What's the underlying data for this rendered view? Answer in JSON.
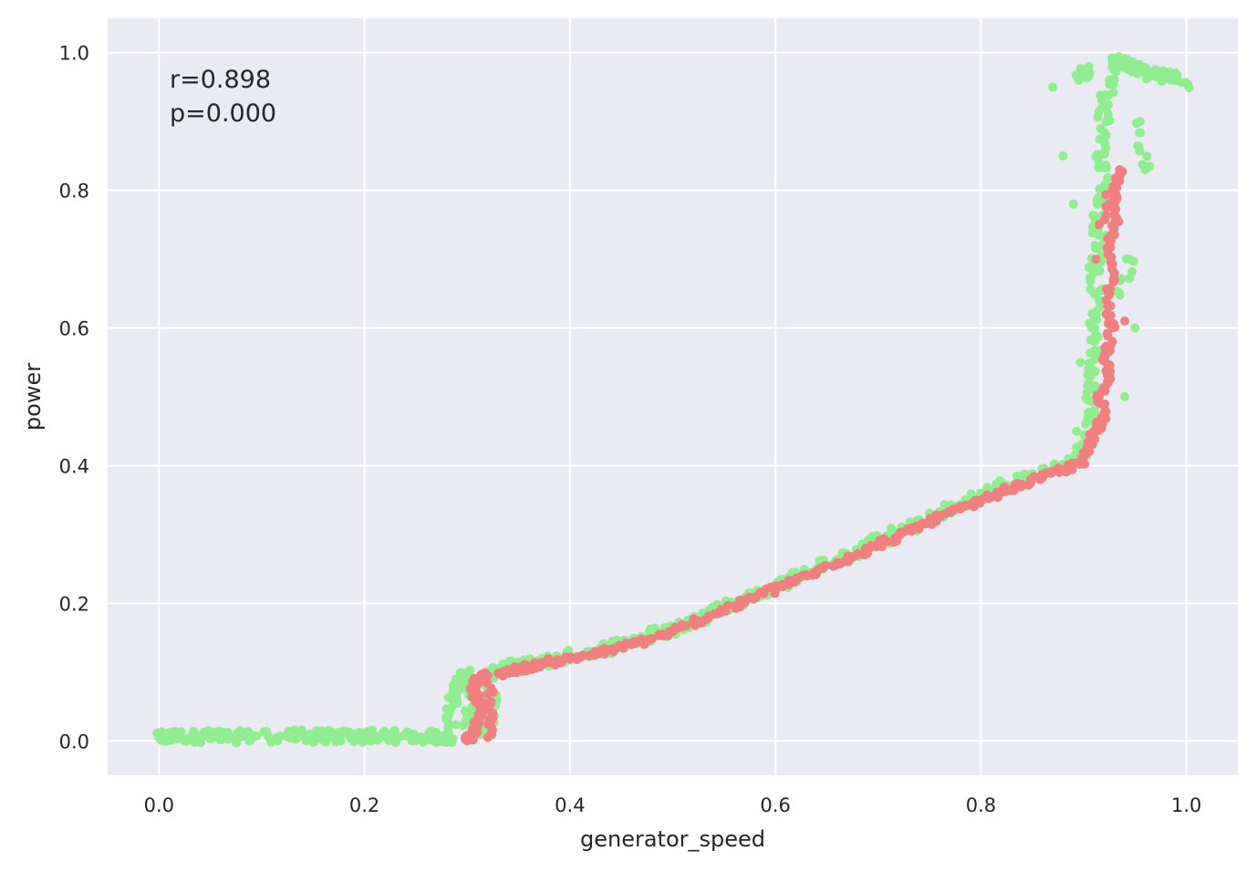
{
  "chart_data": {
    "type": "scatter",
    "xlabel": "generator_speed",
    "ylabel": "power",
    "xlim": [
      -0.05,
      1.05
    ],
    "ylim": [
      -0.05,
      1.05
    ],
    "xticks": [
      0.0,
      0.2,
      0.4,
      0.6,
      0.8,
      1.0
    ],
    "xtick_labels": [
      "0.0",
      "0.2",
      "0.4",
      "0.6",
      "0.8",
      "1.0"
    ],
    "yticks": [
      0.0,
      0.2,
      0.4,
      0.6,
      0.8,
      1.0
    ],
    "ytick_labels": [
      "0.0",
      "0.2",
      "0.4",
      "0.6",
      "0.8",
      "1.0"
    ],
    "grid": true,
    "background_color": "#EAEAF2",
    "grid_color": "#FFFFFF",
    "annotations": [
      "r=0.898",
      "p=0.000"
    ],
    "series": [
      {
        "color": "#90EE90",
        "points": [
          [
            0.0,
            0.004
          ],
          [
            0.005,
            0.005
          ],
          [
            0.01,
            0.008
          ],
          [
            0.032,
            0.006
          ],
          [
            0.045,
            0.007
          ],
          [
            0.052,
            0.007
          ],
          [
            0.068,
            0.006
          ],
          [
            0.08,
            0.006
          ],
          [
            0.095,
            0.007
          ],
          [
            0.118,
            0.007
          ],
          [
            0.14,
            0.007
          ],
          [
            0.15,
            0.006
          ],
          [
            0.155,
            0.007
          ],
          [
            0.17,
            0.006
          ],
          [
            0.185,
            0.007
          ],
          [
            0.2,
            0.006
          ],
          [
            0.21,
            0.007
          ],
          [
            0.225,
            0.006
          ],
          [
            0.24,
            0.007
          ],
          [
            0.26,
            0.006
          ],
          [
            0.275,
            0.006
          ],
          [
            0.285,
            0.004
          ],
          [
            0.285,
            0.06
          ],
          [
            0.29,
            0.08
          ],
          [
            0.295,
            0.095
          ],
          [
            0.29,
            0.07
          ],
          [
            0.3,
            0.1
          ],
          [
            0.305,
            0.05
          ],
          [
            0.3,
            0.03
          ],
          [
            0.31,
            0.02
          ],
          [
            0.32,
            0.01
          ],
          [
            0.325,
            0.06
          ],
          [
            0.32,
            0.09
          ],
          [
            0.33,
            0.105
          ],
          [
            0.34,
            0.108
          ],
          [
            0.36,
            0.113
          ],
          [
            0.38,
            0.118
          ],
          [
            0.4,
            0.124
          ],
          [
            0.42,
            0.13
          ],
          [
            0.44,
            0.137
          ],
          [
            0.46,
            0.145
          ],
          [
            0.48,
            0.153
          ],
          [
            0.5,
            0.163
          ],
          [
            0.52,
            0.175
          ],
          [
            0.54,
            0.188
          ],
          [
            0.56,
            0.2
          ],
          [
            0.58,
            0.212
          ],
          [
            0.6,
            0.225
          ],
          [
            0.62,
            0.238
          ],
          [
            0.64,
            0.25
          ],
          [
            0.66,
            0.263
          ],
          [
            0.68,
            0.277
          ],
          [
            0.7,
            0.29
          ],
          [
            0.72,
            0.303
          ],
          [
            0.74,
            0.316
          ],
          [
            0.76,
            0.33
          ],
          [
            0.78,
            0.343
          ],
          [
            0.8,
            0.355
          ],
          [
            0.82,
            0.368
          ],
          [
            0.84,
            0.38
          ],
          [
            0.86,
            0.39
          ],
          [
            0.88,
            0.402
          ],
          [
            0.895,
            0.415
          ],
          [
            0.905,
            0.44
          ],
          [
            0.91,
            0.48
          ],
          [
            0.905,
            0.52
          ],
          [
            0.912,
            0.56
          ],
          [
            0.908,
            0.6
          ],
          [
            0.915,
            0.64
          ],
          [
            0.91,
            0.68
          ],
          [
            0.918,
            0.72
          ],
          [
            0.912,
            0.76
          ],
          [
            0.92,
            0.8
          ],
          [
            0.915,
            0.84
          ],
          [
            0.922,
            0.88
          ],
          [
            0.918,
            0.92
          ],
          [
            0.925,
            0.96
          ],
          [
            0.93,
            0.99
          ],
          [
            0.94,
            0.985
          ],
          [
            0.95,
            0.978
          ],
          [
            0.96,
            0.97
          ],
          [
            0.975,
            0.965
          ],
          [
            0.985,
            0.968
          ],
          [
            1.0,
            0.955
          ],
          [
            0.905,
            0.98
          ],
          [
            0.895,
            0.96
          ],
          [
            0.88,
            0.85
          ],
          [
            0.87,
            0.95
          ],
          [
            0.89,
            0.78
          ],
          [
            0.935,
            0.65
          ],
          [
            0.945,
            0.7
          ],
          [
            0.95,
            0.6
          ],
          [
            0.94,
            0.5
          ],
          [
            0.955,
            0.9
          ],
          [
            0.96,
            0.83
          ],
          [
            0.897,
            0.55
          ],
          [
            0.893,
            0.45
          ]
        ]
      },
      {
        "color": "#F08080",
        "points": [
          [
            0.3,
            0.0
          ],
          [
            0.305,
            0.01
          ],
          [
            0.31,
            0.03
          ],
          [
            0.315,
            0.05
          ],
          [
            0.305,
            0.07
          ],
          [
            0.31,
            0.09
          ],
          [
            0.32,
            0.095
          ],
          [
            0.325,
            0.04
          ],
          [
            0.32,
            0.005
          ],
          [
            0.33,
            0.098
          ],
          [
            0.345,
            0.102
          ],
          [
            0.36,
            0.108
          ],
          [
            0.38,
            0.114
          ],
          [
            0.4,
            0.119
          ],
          [
            0.42,
            0.125
          ],
          [
            0.44,
            0.132
          ],
          [
            0.46,
            0.14
          ],
          [
            0.48,
            0.149
          ],
          [
            0.5,
            0.159
          ],
          [
            0.52,
            0.171
          ],
          [
            0.54,
            0.184
          ],
          [
            0.56,
            0.196
          ],
          [
            0.58,
            0.208
          ],
          [
            0.6,
            0.221
          ],
          [
            0.62,
            0.233
          ],
          [
            0.64,
            0.246
          ],
          [
            0.66,
            0.259
          ],
          [
            0.68,
            0.272
          ],
          [
            0.7,
            0.285
          ],
          [
            0.72,
            0.298
          ],
          [
            0.74,
            0.311
          ],
          [
            0.76,
            0.325
          ],
          [
            0.78,
            0.337
          ],
          [
            0.8,
            0.349
          ],
          [
            0.82,
            0.361
          ],
          [
            0.84,
            0.373
          ],
          [
            0.86,
            0.383
          ],
          [
            0.88,
            0.394
          ],
          [
            0.9,
            0.405
          ],
          [
            0.905,
            0.43
          ],
          [
            0.91,
            0.45
          ],
          [
            0.92,
            0.47
          ],
          [
            0.915,
            0.5
          ],
          [
            0.925,
            0.53
          ],
          [
            0.92,
            0.56
          ],
          [
            0.928,
            0.6
          ],
          [
            0.922,
            0.64
          ],
          [
            0.93,
            0.68
          ],
          [
            0.925,
            0.72
          ],
          [
            0.932,
            0.76
          ],
          [
            0.928,
            0.8
          ],
          [
            0.935,
            0.83
          ],
          [
            0.915,
            0.75
          ],
          [
            0.94,
            0.61
          ],
          [
            0.912,
            0.7
          ]
        ]
      }
    ]
  }
}
